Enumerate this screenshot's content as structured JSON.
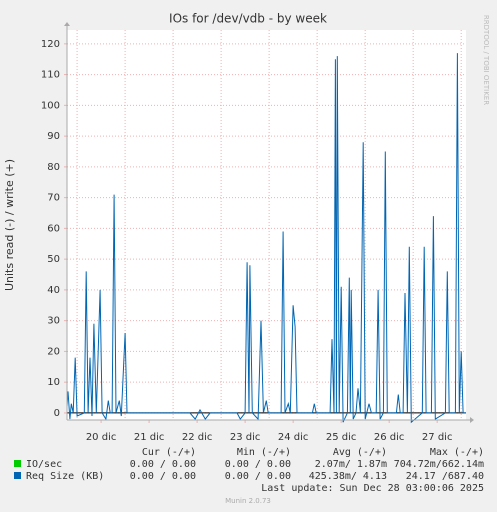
{
  "chart_data": {
    "type": "line",
    "title": "IOs for /dev/vdb - by week",
    "y_label": "Units read (-) / write (+)",
    "side_text": "RRDTOOL / TOBI OETIKER",
    "footer": "Last update: Sun Dec 28 03:00:06 2025",
    "version": "Munin 2.0.73",
    "xlim": [
      19.79,
      28.1
    ],
    "xticks": [
      {
        "value": 20.5,
        "label": "20 dic"
      },
      {
        "value": 21.5,
        "label": "21 dic"
      },
      {
        "value": 22.5,
        "label": "22 dic"
      },
      {
        "value": 23.5,
        "label": "23 dic"
      },
      {
        "value": 24.5,
        "label": "24 dic"
      },
      {
        "value": 25.5,
        "label": "25 dic"
      },
      {
        "value": 26.5,
        "label": "26 dic"
      },
      {
        "value": 27.5,
        "label": "27 dic"
      }
    ],
    "xgrid": [
      20,
      21,
      22,
      23,
      24,
      25,
      26,
      27,
      28
    ],
    "ylim": [
      -2.3,
      124.5
    ],
    "yticks": [
      0,
      10,
      20,
      30,
      40,
      50,
      60,
      70,
      80,
      90,
      100,
      110,
      120
    ],
    "grid": true,
    "stats_headers": [
      "Cur (-/+)",
      "Min (-/+)",
      "Avg (-/+)",
      "Max (-/+)"
    ],
    "x": [
      19.79,
      19.81,
      19.85,
      19.88,
      19.92,
      19.96,
      20,
      20.15,
      20.19,
      20.23,
      20.27,
      20.31,
      20.35,
      20.4,
      20.48,
      20.52,
      20.6,
      20.65,
      20.69,
      20.73,
      20.77,
      20.81,
      20.88,
      20.92,
      21,
      21.04,
      21.31,
      22.35,
      22.46,
      22.56,
      22.67,
      22.77,
      23.33,
      23.4,
      23.5,
      23.54,
      23.58,
      23.6,
      23.65,
      23.77,
      23.83,
      23.88,
      23.94,
      23.98,
      24.25,
      24.29,
      24.33,
      24.4,
      24.44,
      24.5,
      24.54,
      24.58,
      24.9,
      24.94,
      24.98,
      25.27,
      25.31,
      25.35,
      25.38,
      25.4,
      25.42,
      25.46,
      25.5,
      25.54,
      25.63,
      25.67,
      25.69,
      25.71,
      25.75,
      25.81,
      25.85,
      25.9,
      25.96,
      26,
      26.08,
      26.13,
      26.23,
      26.27,
      26.31,
      26.38,
      26.42,
      26.46,
      26.65,
      26.69,
      26.73,
      26.79,
      26.83,
      26.88,
      26.92,
      26.96,
      27.19,
      27.23,
      27.27,
      27.38,
      27.42,
      27.46,
      27.67,
      27.71,
      27.75,
      27.88,
      27.92,
      27.96,
      28,
      28.04,
      28.1
    ],
    "series": [
      {
        "name": "IO/sec",
        "color": "#00cc00",
        "stats": [
          "0.00 / 0.00",
          "0.00 / 0.00",
          "2.07m/ 1.87m",
          "704.72m/662.14m"
        ]
      },
      {
        "name": "Req Size (KB)",
        "color": "#0066b3",
        "stats": [
          "0.00 / 0.00",
          "0.00 / 0.00",
          "425.38m/ 4.13",
          "24.17 /687.40"
        ],
        "values": [
          2,
          7,
          -2,
          3,
          0,
          18,
          -1,
          0,
          46,
          0,
          18,
          -1,
          29,
          0,
          40,
          0,
          -2,
          4,
          0,
          0,
          71,
          0,
          4,
          -1,
          26,
          0,
          0,
          0,
          -2,
          1,
          -2,
          0,
          0,
          -2,
          0,
          49,
          0,
          48,
          0,
          -2,
          30,
          0,
          4,
          0,
          0,
          59,
          0,
          3,
          0,
          35,
          28,
          0,
          0,
          3,
          0,
          0,
          24,
          0,
          115,
          0,
          116,
          0,
          41,
          -3,
          0,
          44,
          0,
          40,
          -2,
          0,
          8,
          0,
          88,
          -2,
          3,
          0,
          0,
          40,
          -2,
          0,
          85,
          0,
          0,
          6,
          0,
          0,
          39,
          0,
          54,
          -3,
          0,
          54,
          0,
          0,
          64,
          -2,
          0,
          46,
          0,
          0,
          117,
          0,
          20,
          0,
          0
        ]
      }
    ]
  }
}
